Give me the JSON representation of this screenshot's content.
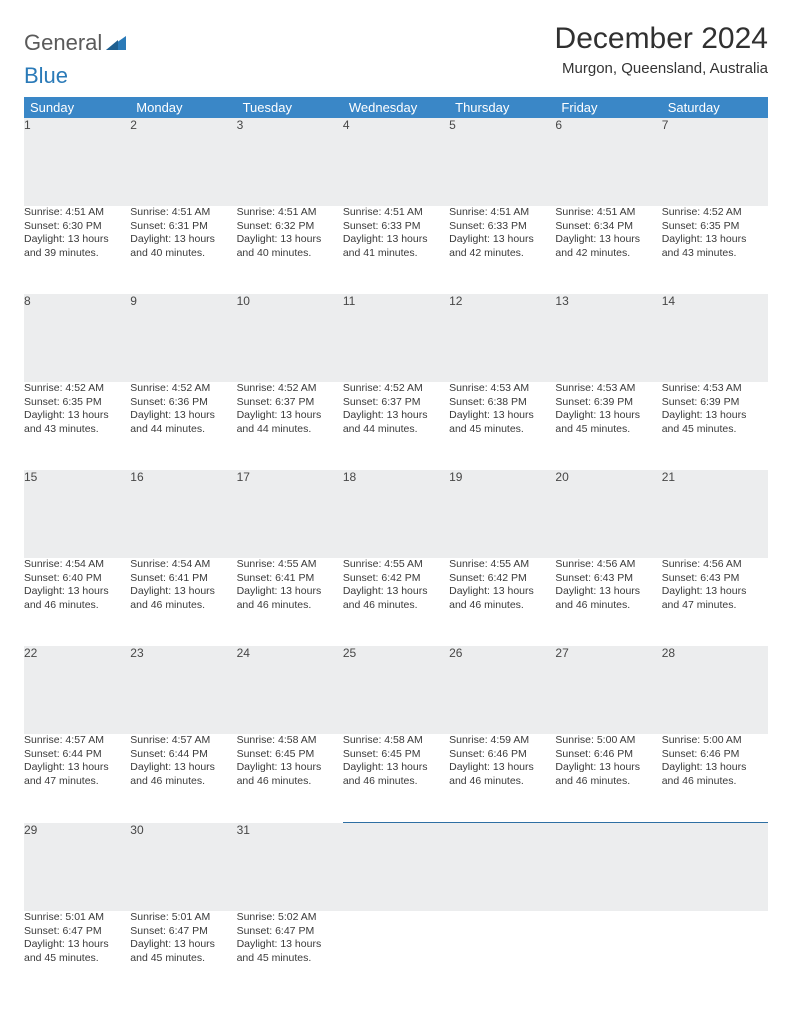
{
  "brand": {
    "part1": "General",
    "part2": "Blue"
  },
  "title": "December 2024",
  "location": "Murgon, Queensland, Australia",
  "day_headers": [
    "Sunday",
    "Monday",
    "Tuesday",
    "Wednesday",
    "Thursday",
    "Friday",
    "Saturday"
  ],
  "colors": {
    "header_bg": "#3a87c7",
    "header_text": "#ffffff",
    "daynum_bg": "#ecedee",
    "border_top": "#2e6fa3",
    "text": "#3a3a3a"
  },
  "weeks": [
    [
      {
        "n": "1",
        "sr": "Sunrise: 4:51 AM",
        "ss": "Sunset: 6:30 PM",
        "d1": "Daylight: 13 hours",
        "d2": "and 39 minutes."
      },
      {
        "n": "2",
        "sr": "Sunrise: 4:51 AM",
        "ss": "Sunset: 6:31 PM",
        "d1": "Daylight: 13 hours",
        "d2": "and 40 minutes."
      },
      {
        "n": "3",
        "sr": "Sunrise: 4:51 AM",
        "ss": "Sunset: 6:32 PM",
        "d1": "Daylight: 13 hours",
        "d2": "and 40 minutes."
      },
      {
        "n": "4",
        "sr": "Sunrise: 4:51 AM",
        "ss": "Sunset: 6:33 PM",
        "d1": "Daylight: 13 hours",
        "d2": "and 41 minutes."
      },
      {
        "n": "5",
        "sr": "Sunrise: 4:51 AM",
        "ss": "Sunset: 6:33 PM",
        "d1": "Daylight: 13 hours",
        "d2": "and 42 minutes."
      },
      {
        "n": "6",
        "sr": "Sunrise: 4:51 AM",
        "ss": "Sunset: 6:34 PM",
        "d1": "Daylight: 13 hours",
        "d2": "and 42 minutes."
      },
      {
        "n": "7",
        "sr": "Sunrise: 4:52 AM",
        "ss": "Sunset: 6:35 PM",
        "d1": "Daylight: 13 hours",
        "d2": "and 43 minutes."
      }
    ],
    [
      {
        "n": "8",
        "sr": "Sunrise: 4:52 AM",
        "ss": "Sunset: 6:35 PM",
        "d1": "Daylight: 13 hours",
        "d2": "and 43 minutes."
      },
      {
        "n": "9",
        "sr": "Sunrise: 4:52 AM",
        "ss": "Sunset: 6:36 PM",
        "d1": "Daylight: 13 hours",
        "d2": "and 44 minutes."
      },
      {
        "n": "10",
        "sr": "Sunrise: 4:52 AM",
        "ss": "Sunset: 6:37 PM",
        "d1": "Daylight: 13 hours",
        "d2": "and 44 minutes."
      },
      {
        "n": "11",
        "sr": "Sunrise: 4:52 AM",
        "ss": "Sunset: 6:37 PM",
        "d1": "Daylight: 13 hours",
        "d2": "and 44 minutes."
      },
      {
        "n": "12",
        "sr": "Sunrise: 4:53 AM",
        "ss": "Sunset: 6:38 PM",
        "d1": "Daylight: 13 hours",
        "d2": "and 45 minutes."
      },
      {
        "n": "13",
        "sr": "Sunrise: 4:53 AM",
        "ss": "Sunset: 6:39 PM",
        "d1": "Daylight: 13 hours",
        "d2": "and 45 minutes."
      },
      {
        "n": "14",
        "sr": "Sunrise: 4:53 AM",
        "ss": "Sunset: 6:39 PM",
        "d1": "Daylight: 13 hours",
        "d2": "and 45 minutes."
      }
    ],
    [
      {
        "n": "15",
        "sr": "Sunrise: 4:54 AM",
        "ss": "Sunset: 6:40 PM",
        "d1": "Daylight: 13 hours",
        "d2": "and 46 minutes."
      },
      {
        "n": "16",
        "sr": "Sunrise: 4:54 AM",
        "ss": "Sunset: 6:41 PM",
        "d1": "Daylight: 13 hours",
        "d2": "and 46 minutes."
      },
      {
        "n": "17",
        "sr": "Sunrise: 4:55 AM",
        "ss": "Sunset: 6:41 PM",
        "d1": "Daylight: 13 hours",
        "d2": "and 46 minutes."
      },
      {
        "n": "18",
        "sr": "Sunrise: 4:55 AM",
        "ss": "Sunset: 6:42 PM",
        "d1": "Daylight: 13 hours",
        "d2": "and 46 minutes."
      },
      {
        "n": "19",
        "sr": "Sunrise: 4:55 AM",
        "ss": "Sunset: 6:42 PM",
        "d1": "Daylight: 13 hours",
        "d2": "and 46 minutes."
      },
      {
        "n": "20",
        "sr": "Sunrise: 4:56 AM",
        "ss": "Sunset: 6:43 PM",
        "d1": "Daylight: 13 hours",
        "d2": "and 46 minutes."
      },
      {
        "n": "21",
        "sr": "Sunrise: 4:56 AM",
        "ss": "Sunset: 6:43 PM",
        "d1": "Daylight: 13 hours",
        "d2": "and 47 minutes."
      }
    ],
    [
      {
        "n": "22",
        "sr": "Sunrise: 4:57 AM",
        "ss": "Sunset: 6:44 PM",
        "d1": "Daylight: 13 hours",
        "d2": "and 47 minutes."
      },
      {
        "n": "23",
        "sr": "Sunrise: 4:57 AM",
        "ss": "Sunset: 6:44 PM",
        "d1": "Daylight: 13 hours",
        "d2": "and 46 minutes."
      },
      {
        "n": "24",
        "sr": "Sunrise: 4:58 AM",
        "ss": "Sunset: 6:45 PM",
        "d1": "Daylight: 13 hours",
        "d2": "and 46 minutes."
      },
      {
        "n": "25",
        "sr": "Sunrise: 4:58 AM",
        "ss": "Sunset: 6:45 PM",
        "d1": "Daylight: 13 hours",
        "d2": "and 46 minutes."
      },
      {
        "n": "26",
        "sr": "Sunrise: 4:59 AM",
        "ss": "Sunset: 6:46 PM",
        "d1": "Daylight: 13 hours",
        "d2": "and 46 minutes."
      },
      {
        "n": "27",
        "sr": "Sunrise: 5:00 AM",
        "ss": "Sunset: 6:46 PM",
        "d1": "Daylight: 13 hours",
        "d2": "and 46 minutes."
      },
      {
        "n": "28",
        "sr": "Sunrise: 5:00 AM",
        "ss": "Sunset: 6:46 PM",
        "d1": "Daylight: 13 hours",
        "d2": "and 46 minutes."
      }
    ],
    [
      {
        "n": "29",
        "sr": "Sunrise: 5:01 AM",
        "ss": "Sunset: 6:47 PM",
        "d1": "Daylight: 13 hours",
        "d2": "and 45 minutes."
      },
      {
        "n": "30",
        "sr": "Sunrise: 5:01 AM",
        "ss": "Sunset: 6:47 PM",
        "d1": "Daylight: 13 hours",
        "d2": "and 45 minutes."
      },
      {
        "n": "31",
        "sr": "Sunrise: 5:02 AM",
        "ss": "Sunset: 6:47 PM",
        "d1": "Daylight: 13 hours",
        "d2": "and 45 minutes."
      },
      null,
      null,
      null,
      null
    ]
  ]
}
